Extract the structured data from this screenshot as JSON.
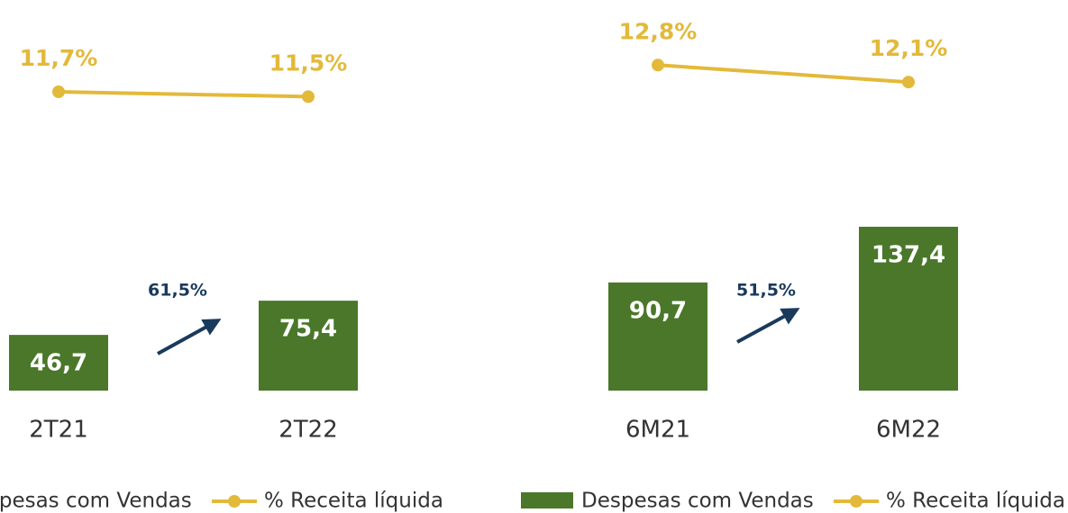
{
  "chart_data": [
    {
      "type": "bar-line",
      "categories": [
        "2T21",
        "2T22"
      ],
      "series": [
        {
          "name": "Despesas com Vendas",
          "color": "#4a7729",
          "values": [
            46.7,
            75.4
          ],
          "value_labels": [
            "46,7",
            "75,4"
          ]
        },
        {
          "name": "% Receita líquida",
          "color": "#e3b93a",
          "values": [
            11.7,
            11.5
          ],
          "value_labels": [
            "11,7%",
            "11,5%"
          ]
        }
      ],
      "annotation": "61,5%"
    },
    {
      "type": "bar-line",
      "categories": [
        "6M21",
        "6M22"
      ],
      "series": [
        {
          "name": "Despesas com Vendas",
          "color": "#4a7729",
          "values": [
            90.7,
            137.4
          ],
          "value_labels": [
            "90,7",
            "137,4"
          ]
        },
        {
          "name": "% Receita líquida",
          "color": "#e3b93a",
          "values": [
            12.8,
            12.1
          ],
          "value_labels": [
            "12,8%",
            "12,1%"
          ]
        }
      ],
      "annotation": "51,5%"
    }
  ]
}
